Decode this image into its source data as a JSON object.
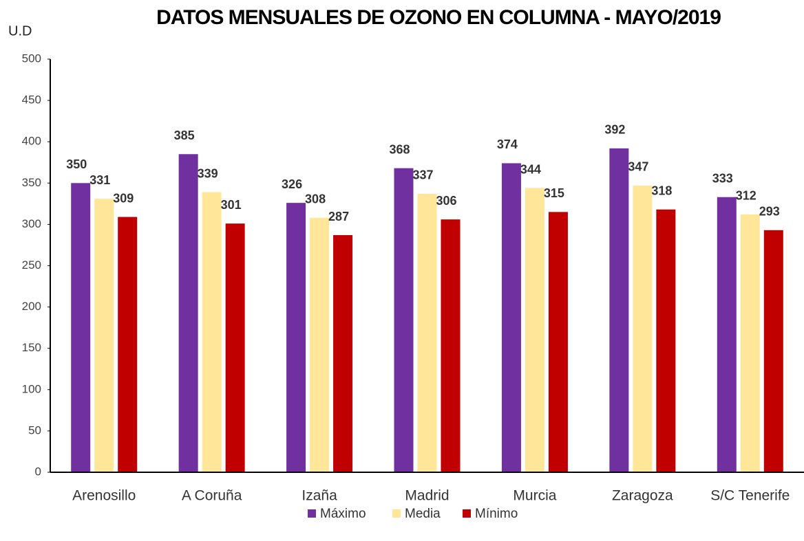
{
  "chart_data": {
    "type": "bar",
    "title": "DATOS MENSUALES DE OZONO EN COLUMNA - MAYO/2019",
    "y_label": "U.D",
    "categories": [
      "Arenosillo",
      "A Coruña",
      "Izaña",
      "Madrid",
      "Murcia",
      "Zaragoza",
      "S/C Tenerife"
    ],
    "series": [
      {
        "name": "Máximo",
        "color": "#7030a0",
        "values": [
          350,
          385,
          326,
          368,
          374,
          392,
          333
        ]
      },
      {
        "name": "Media",
        "color": "#ffe699",
        "values": [
          331,
          339,
          308,
          337,
          344,
          347,
          312
        ]
      },
      {
        "name": "Mínimo",
        "color": "#c00000",
        "values": [
          309,
          301,
          287,
          306,
          315,
          318,
          293
        ]
      }
    ],
    "ylim": [
      0,
      500
    ],
    "yticks": [
      0,
      50,
      100,
      150,
      200,
      250,
      300,
      350,
      400,
      450,
      500
    ],
    "grid": false,
    "legend": "bottom"
  }
}
